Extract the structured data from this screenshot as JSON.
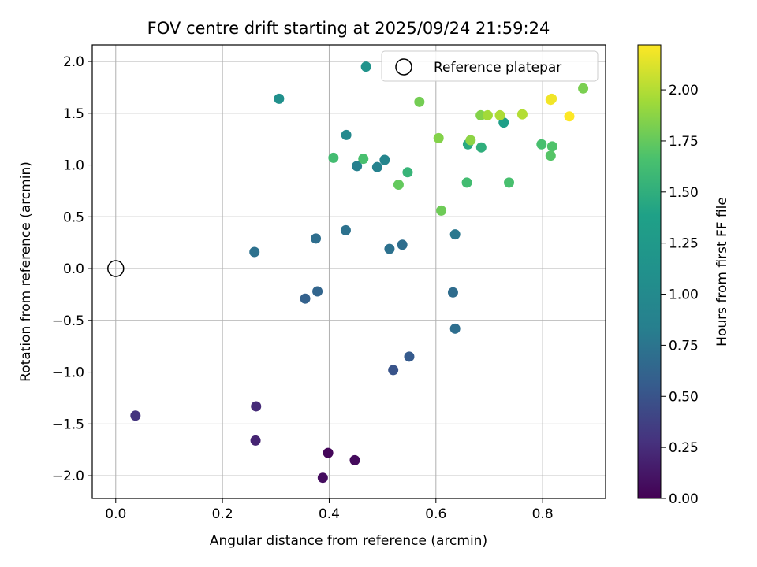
{
  "chart_data": {
    "type": "scatter",
    "title": "FOV centre drift starting at 2025/09/24 21:59:24",
    "xlabel": "Angular distance from reference (arcmin)",
    "ylabel": "Rotation from reference (arcmin)",
    "xlim": [
      -0.044,
      0.918
    ],
    "ylim": [
      -2.22,
      2.16
    ],
    "xticks": [
      0.0,
      0.2,
      0.4,
      0.6,
      0.8
    ],
    "xtick_labels": [
      "0.0",
      "0.2",
      "0.4",
      "0.6",
      "0.8"
    ],
    "yticks": [
      -2.0,
      -1.5,
      -1.0,
      -0.5,
      0.0,
      0.5,
      1.0,
      1.5,
      2.0
    ],
    "ytick_labels": [
      "−2.0",
      "−1.5",
      "−1.0",
      "−0.5",
      "0.0",
      "0.5",
      "1.0",
      "1.5",
      "2.0"
    ],
    "grid": true,
    "reference_point": {
      "label": "Reference platepar",
      "x": 0.0,
      "y": 0.0
    },
    "legend": {
      "entries": [
        "Reference platepar"
      ],
      "position": "upper right"
    },
    "colorbar": {
      "label": "Hours from first FF file",
      "min": 0.0,
      "max": 2.22,
      "colormap": "viridis",
      "ticks": [
        0.0,
        0.25,
        0.5,
        0.75,
        1.0,
        1.25,
        1.5,
        1.75,
        2.0
      ],
      "tick_labels": [
        "0.00",
        "0.25",
        "0.50",
        "0.75",
        "1.00",
        "1.25",
        "1.50",
        "1.75",
        "2.00"
      ]
    },
    "series": [
      {
        "name": "drift",
        "points": [
          {
            "x": 0.398,
            "y": -1.78,
            "t": 0.03
          },
          {
            "x": 0.448,
            "y": -1.85,
            "t": 0.05
          },
          {
            "x": 0.388,
            "y": -2.02,
            "t": 0.07
          },
          {
            "x": 0.262,
            "y": -1.66,
            "t": 0.2
          },
          {
            "x": 0.263,
            "y": -1.33,
            "t": 0.24
          },
          {
            "x": 0.037,
            "y": -1.42,
            "t": 0.3
          },
          {
            "x": 0.52,
            "y": -0.98,
            "t": 0.5
          },
          {
            "x": 0.55,
            "y": -0.85,
            "t": 0.55
          },
          {
            "x": 0.355,
            "y": -0.29,
            "t": 0.6
          },
          {
            "x": 0.378,
            "y": -0.22,
            "t": 0.63
          },
          {
            "x": 0.632,
            "y": -0.23,
            "t": 0.68
          },
          {
            "x": 0.636,
            "y": -0.58,
            "t": 0.7
          },
          {
            "x": 0.513,
            "y": 0.19,
            "t": 0.72
          },
          {
            "x": 0.537,
            "y": 0.23,
            "t": 0.7
          },
          {
            "x": 0.26,
            "y": 0.16,
            "t": 0.72
          },
          {
            "x": 0.375,
            "y": 0.29,
            "t": 0.7
          },
          {
            "x": 0.431,
            "y": 0.37,
            "t": 0.73
          },
          {
            "x": 0.636,
            "y": 0.33,
            "t": 0.78
          },
          {
            "x": 0.452,
            "y": 0.99,
            "t": 0.85
          },
          {
            "x": 0.49,
            "y": 0.98,
            "t": 0.88
          },
          {
            "x": 0.504,
            "y": 1.05,
            "t": 0.92
          },
          {
            "x": 0.432,
            "y": 1.29,
            "t": 0.98
          },
          {
            "x": 0.306,
            "y": 1.64,
            "t": 1.1
          },
          {
            "x": 0.469,
            "y": 1.95,
            "t": 1.15
          },
          {
            "x": 0.727,
            "y": 1.41,
            "t": 1.35
          },
          {
            "x": 0.66,
            "y": 1.2,
            "t": 1.45
          },
          {
            "x": 0.685,
            "y": 1.17,
            "t": 1.5
          },
          {
            "x": 0.547,
            "y": 0.93,
            "t": 1.55
          },
          {
            "x": 0.408,
            "y": 1.07,
            "t": 1.62
          },
          {
            "x": 0.464,
            "y": 1.06,
            "t": 1.65
          },
          {
            "x": 0.798,
            "y": 1.2,
            "t": 1.65
          },
          {
            "x": 0.818,
            "y": 1.18,
            "t": 1.68
          },
          {
            "x": 0.815,
            "y": 1.09,
            "t": 1.7
          },
          {
            "x": 0.658,
            "y": 0.83,
            "t": 1.62
          },
          {
            "x": 0.737,
            "y": 0.83,
            "t": 1.65
          },
          {
            "x": 0.53,
            "y": 0.81,
            "t": 1.75
          },
          {
            "x": 0.61,
            "y": 0.56,
            "t": 1.78
          },
          {
            "x": 0.605,
            "y": 1.26,
            "t": 1.85
          },
          {
            "x": 0.665,
            "y": 1.24,
            "t": 1.88
          },
          {
            "x": 0.569,
            "y": 1.61,
            "t": 1.8
          },
          {
            "x": 0.684,
            "y": 1.48,
            "t": 1.85
          },
          {
            "x": 0.697,
            "y": 1.48,
            "t": 1.95
          },
          {
            "x": 0.72,
            "y": 1.48,
            "t": 1.98
          },
          {
            "x": 0.762,
            "y": 1.49,
            "t": 2.0
          },
          {
            "x": 0.876,
            "y": 1.74,
            "t": 1.82
          },
          {
            "x": 0.815,
            "y": 1.63,
            "t": 2.2
          },
          {
            "x": 0.817,
            "y": 1.64,
            "t": 2.18
          },
          {
            "x": 0.85,
            "y": 1.47,
            "t": 2.22
          }
        ]
      }
    ]
  }
}
